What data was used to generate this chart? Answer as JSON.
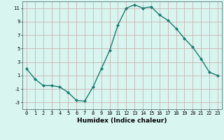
{
  "x": [
    0,
    1,
    2,
    3,
    4,
    5,
    6,
    7,
    8,
    9,
    10,
    11,
    12,
    13,
    14,
    15,
    16,
    17,
    18,
    19,
    20,
    21,
    22,
    23
  ],
  "y": [
    2,
    0.5,
    -0.5,
    -0.5,
    -0.7,
    -1.5,
    -2.7,
    -2.8,
    -0.7,
    2.0,
    4.7,
    8.5,
    11.0,
    11.5,
    11.0,
    11.2,
    10.0,
    9.2,
    8.0,
    6.5,
    5.2,
    3.5,
    1.5,
    1.0
  ],
  "xlabel": "Humidex (Indice chaleur)",
  "xlim": [
    -0.5,
    23.5
  ],
  "ylim": [
    -4,
    12
  ],
  "yticks": [
    -3,
    -1,
    1,
    3,
    5,
    7,
    9,
    11
  ],
  "xticks": [
    0,
    1,
    2,
    3,
    4,
    5,
    6,
    7,
    8,
    9,
    10,
    11,
    12,
    13,
    14,
    15,
    16,
    17,
    18,
    19,
    20,
    21,
    22,
    23
  ],
  "line_color": "#1a7a6e",
  "marker": "D",
  "marker_size": 2.0,
  "bg_color": "#d8f5f0",
  "grid_color": "#c8a8a8",
  "tick_fontsize": 5.0,
  "xlabel_fontsize": 6.5
}
